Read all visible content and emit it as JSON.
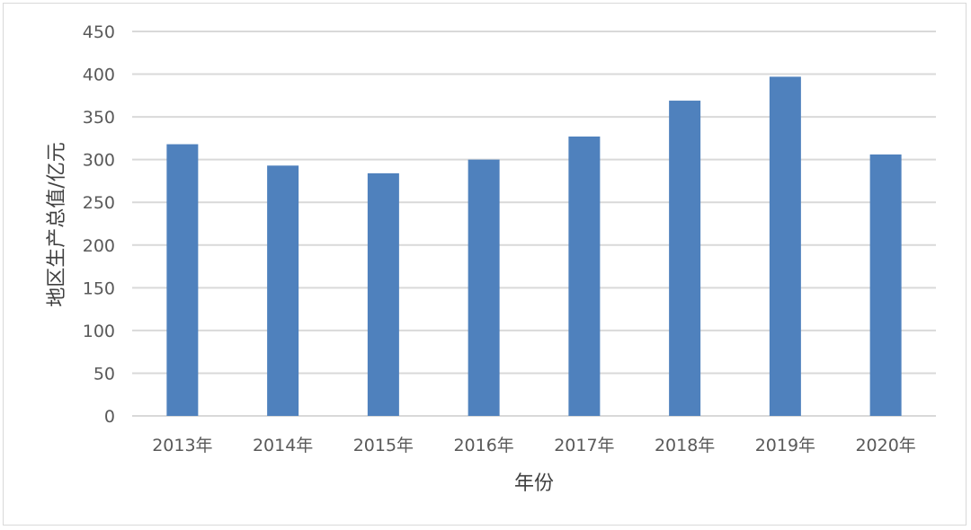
{
  "chart_data": {
    "type": "bar",
    "title": "",
    "xlabel": "年份",
    "ylabel": "地区生产总值/亿元",
    "categories": [
      "2013年",
      "2014年",
      "2015年",
      "2016年",
      "2017年",
      "2018年",
      "2019年",
      "2020年"
    ],
    "values": [
      318,
      293,
      284,
      300,
      327,
      369,
      397,
      306
    ],
    "ylim": [
      0,
      450
    ],
    "yticks": [
      0,
      50,
      100,
      150,
      200,
      250,
      300,
      350,
      400,
      450
    ],
    "grid": true,
    "legend": "none",
    "bar_color": "#4f81bd",
    "grid_color": "#d9d9d9"
  }
}
